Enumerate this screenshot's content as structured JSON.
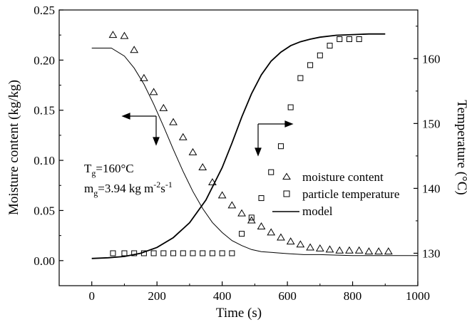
{
  "chart_data": {
    "type": "scatter",
    "xlabel": "Time (s)",
    "ylabel_left": "Moisture content (kg/kg)",
    "ylabel_right": "Temperature (°C)",
    "xlim": [
      -100,
      1000
    ],
    "ylim_left": [
      -0.025,
      0.25
    ],
    "ylim_right": [
      125,
      167.5
    ],
    "x_ticks": [
      "0",
      "200",
      "400",
      "600",
      "800",
      "1000"
    ],
    "y_ticks_left": [
      "0.00",
      "0.05",
      "0.10",
      "0.15",
      "0.20",
      "0.25"
    ],
    "y_ticks_right": [
      "130",
      "140",
      "150",
      "160"
    ],
    "grid": false,
    "annotations": {
      "tg_base": "T",
      "tg_sub": "g",
      "tg_value": "=160°C",
      "mg_base": "m",
      "mg_sub": "g",
      "mg_value": "=3.94 kg m",
      "mg_exp1": "-2",
      "mg_unit2": "s",
      "mg_exp2": "-1"
    },
    "legend": {
      "position": "inside-right",
      "entries": [
        "moisture content",
        "particle temperature",
        "model"
      ]
    },
    "series": [
      {
        "name": "moisture content",
        "axis": "left",
        "marker": "triangle",
        "x": [
          65,
          100,
          130,
          160,
          190,
          220,
          250,
          280,
          310,
          340,
          370,
          400,
          430,
          460,
          490,
          520,
          550,
          580,
          610,
          640,
          670,
          700,
          730,
          760,
          790,
          820,
          850,
          880,
          910
        ],
        "y": [
          0.225,
          0.224,
          0.21,
          0.182,
          0.168,
          0.152,
          0.138,
          0.123,
          0.108,
          0.093,
          0.078,
          0.065,
          0.055,
          0.047,
          0.04,
          0.034,
          0.028,
          0.023,
          0.019,
          0.016,
          0.013,
          0.012,
          0.011,
          0.01,
          0.01,
          0.01,
          0.009,
          0.009,
          0.009
        ]
      },
      {
        "name": "particle temperature",
        "axis": "right",
        "marker": "square",
        "x": [
          65,
          100,
          130,
          160,
          190,
          220,
          250,
          280,
          310,
          340,
          370,
          400,
          430,
          460,
          490,
          520,
          550,
          580,
          610,
          640,
          670,
          700,
          730,
          760,
          790,
          820
        ],
        "y": [
          130,
          130,
          130,
          130,
          130,
          130,
          130,
          130,
          130,
          130,
          130,
          130,
          130,
          133,
          135.5,
          138.5,
          142.5,
          146.5,
          152.5,
          157,
          159,
          160.5,
          162,
          163,
          163,
          163
        ]
      },
      {
        "name": "model",
        "role": "moisture",
        "axis": "left",
        "line_width": 1,
        "x": [
          0,
          60,
          100,
          130,
          160,
          190,
          220,
          250,
          280,
          310,
          340,
          370,
          400,
          430,
          460,
          490,
          520,
          560,
          600,
          650,
          700,
          750,
          800,
          850,
          900,
          950,
          1000
        ],
        "y": [
          0.212,
          0.212,
          0.204,
          0.192,
          0.176,
          0.156,
          0.134,
          0.111,
          0.089,
          0.069,
          0.052,
          0.038,
          0.028,
          0.02,
          0.015,
          0.011,
          0.009,
          0.008,
          0.007,
          0.006,
          0.006,
          0.0055,
          0.005,
          0.005,
          0.005,
          0.005,
          0.005
        ]
      },
      {
        "name": "model",
        "role": "temperature",
        "axis": "right",
        "line_width": 1.8,
        "x": [
          0,
          50,
          100,
          150,
          200,
          250,
          300,
          350,
          400,
          430,
          460,
          490,
          520,
          550,
          580,
          610,
          640,
          670,
          700,
          750,
          800,
          850,
          900
        ],
        "y": [
          129.2,
          129.3,
          129.5,
          130.0,
          130.9,
          132.4,
          134.7,
          138.2,
          143.2,
          147.0,
          151.0,
          154.6,
          157.5,
          159.6,
          161.0,
          162.0,
          162.6,
          163.0,
          163.3,
          163.6,
          163.7,
          163.8,
          163.8
        ]
      }
    ]
  }
}
